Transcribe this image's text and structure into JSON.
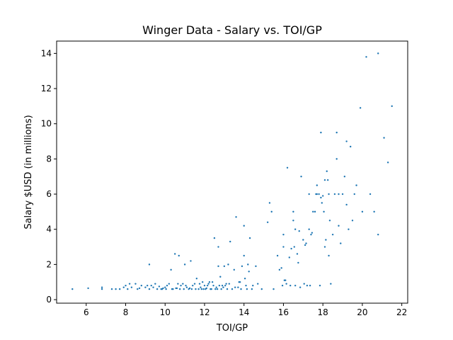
{
  "chart_data": {
    "type": "scatter",
    "title": "Winger Data - Salary vs. TOI/GP",
    "xlabel": "TOI/GP",
    "ylabel": "Salary $USD (in millions)",
    "xlim": [
      4.5,
      22.3
    ],
    "ylim": [
      -0.2,
      14.7
    ],
    "xticks": [
      6,
      8,
      10,
      12,
      14,
      16,
      18,
      20,
      22
    ],
    "yticks": [
      0,
      2,
      4,
      6,
      8,
      10,
      12,
      14
    ],
    "grid": false,
    "legend": "none",
    "marker_color": "#1f77b4",
    "points": [
      [
        5.3,
        0.6
      ],
      [
        6.1,
        0.65
      ],
      [
        6.8,
        0.6
      ],
      [
        6.8,
        0.7
      ],
      [
        7.3,
        0.6
      ],
      [
        7.5,
        0.6
      ],
      [
        7.7,
        0.6
      ],
      [
        7.9,
        0.7
      ],
      [
        8.0,
        0.8
      ],
      [
        8.2,
        0.9
      ],
      [
        8.3,
        0.7
      ],
      [
        8.5,
        0.9
      ],
      [
        8.6,
        0.6
      ],
      [
        8.8,
        0.8
      ],
      [
        9.0,
        0.7
      ],
      [
        9.2,
        2.0
      ],
      [
        9.2,
        0.6
      ],
      [
        9.3,
        0.8
      ],
      [
        9.4,
        0.7
      ],
      [
        9.5,
        0.9
      ],
      [
        9.6,
        0.6
      ],
      [
        9.7,
        0.75
      ],
      [
        9.8,
        0.6
      ],
      [
        9.9,
        0.65
      ],
      [
        10.0,
        0.7
      ],
      [
        10.1,
        0.8
      ],
      [
        10.2,
        0.9
      ],
      [
        10.3,
        1.7
      ],
      [
        10.4,
        0.6
      ],
      [
        10.5,
        2.6
      ],
      [
        10.6,
        0.65
      ],
      [
        10.7,
        2.5
      ],
      [
        10.8,
        0.8
      ],
      [
        10.9,
        0.9
      ],
      [
        11.0,
        2.0
      ],
      [
        11.1,
        0.7
      ],
      [
        11.2,
        0.6
      ],
      [
        11.3,
        2.2
      ],
      [
        11.4,
        0.8
      ],
      [
        11.5,
        0.9
      ],
      [
        11.6,
        1.2
      ],
      [
        11.7,
        0.6
      ],
      [
        11.8,
        0.7
      ],
      [
        11.9,
        1.0
      ],
      [
        12.0,
        0.8
      ],
      [
        12.1,
        0.65
      ],
      [
        12.2,
        0.9
      ],
      [
        12.3,
        0.6
      ],
      [
        12.4,
        1.0
      ],
      [
        12.5,
        3.5
      ],
      [
        12.6,
        0.7
      ],
      [
        12.7,
        1.9
      ],
      [
        12.7,
        3.0
      ],
      [
        12.8,
        1.3
      ],
      [
        12.9,
        0.8
      ],
      [
        13.0,
        1.9
      ],
      [
        13.1,
        0.9
      ],
      [
        13.2,
        2.0
      ],
      [
        13.3,
        3.3
      ],
      [
        13.4,
        0.6
      ],
      [
        13.5,
        1.7
      ],
      [
        13.6,
        4.7
      ],
      [
        13.7,
        0.7
      ],
      [
        13.8,
        1.0
      ],
      [
        13.9,
        1.9
      ],
      [
        14.0,
        2.5
      ],
      [
        14.0,
        4.2
      ],
      [
        14.1,
        0.8
      ],
      [
        14.2,
        2.0
      ],
      [
        14.3,
        3.5
      ],
      [
        14.4,
        0.6
      ],
      [
        14.6,
        1.9
      ],
      [
        14.7,
        0.9
      ],
      [
        14.9,
        0.6
      ],
      [
        15.2,
        4.4
      ],
      [
        15.3,
        5.5
      ],
      [
        15.4,
        5.0
      ],
      [
        15.5,
        0.6
      ],
      [
        15.7,
        2.5
      ],
      [
        15.8,
        1.7
      ],
      [
        15.9,
        1.8
      ],
      [
        16.0,
        3.0
      ],
      [
        16.0,
        3.7
      ],
      [
        16.1,
        1.1
      ],
      [
        16.2,
        7.5
      ],
      [
        16.3,
        2.4
      ],
      [
        16.4,
        2.9
      ],
      [
        16.5,
        5.0
      ],
      [
        16.5,
        4.5
      ],
      [
        16.6,
        4.0
      ],
      [
        16.7,
        2.6
      ],
      [
        16.8,
        3.9
      ],
      [
        16.9,
        7.0
      ],
      [
        17.0,
        3.4
      ],
      [
        17.1,
        3.1
      ],
      [
        17.2,
        0.8
      ],
      [
        17.3,
        6.0
      ],
      [
        17.3,
        4.0
      ],
      [
        17.4,
        3.7
      ],
      [
        17.5,
        5.0
      ],
      [
        17.6,
        5.0
      ],
      [
        17.7,
        6.0
      ],
      [
        17.7,
        6.5
      ],
      [
        17.8,
        6.0
      ],
      [
        17.9,
        9.5
      ],
      [
        17.9,
        5.8
      ],
      [
        18.0,
        5.9
      ],
      [
        18.1,
        3.0
      ],
      [
        18.1,
        6.8
      ],
      [
        18.2,
        7.3
      ],
      [
        18.3,
        2.5
      ],
      [
        18.3,
        6.0
      ],
      [
        18.4,
        0.9
      ],
      [
        18.5,
        3.7
      ],
      [
        18.6,
        6.0
      ],
      [
        18.7,
        9.5
      ],
      [
        18.7,
        8.0
      ],
      [
        18.8,
        6.0
      ],
      [
        18.8,
        4.2
      ],
      [
        18.9,
        3.2
      ],
      [
        19.0,
        6.0
      ],
      [
        19.1,
        7.0
      ],
      [
        19.2,
        9.0
      ],
      [
        19.2,
        5.4
      ],
      [
        19.3,
        4.0
      ],
      [
        19.4,
        8.7
      ],
      [
        19.5,
        4.5
      ],
      [
        19.6,
        6.0
      ],
      [
        19.7,
        6.5
      ],
      [
        19.9,
        10.9
      ],
      [
        20.0,
        5.0
      ],
      [
        20.2,
        13.8
      ],
      [
        20.4,
        6.0
      ],
      [
        20.6,
        5.0
      ],
      [
        20.8,
        14.0
      ],
      [
        20.8,
        3.7
      ],
      [
        21.1,
        9.2
      ],
      [
        21.3,
        7.8
      ],
      [
        21.5,
        11.0
      ],
      [
        8.1,
        0.6
      ],
      [
        8.7,
        0.65
      ],
      [
        9.1,
        0.8
      ],
      [
        9.85,
        0.6
      ],
      [
        10.05,
        0.6
      ],
      [
        10.35,
        0.6
      ],
      [
        10.55,
        0.65
      ],
      [
        10.65,
        0.9
      ],
      [
        10.75,
        0.6
      ],
      [
        10.95,
        0.6
      ],
      [
        11.05,
        0.8
      ],
      [
        11.25,
        0.65
      ],
      [
        11.35,
        0.6
      ],
      [
        11.55,
        0.6
      ],
      [
        11.75,
        0.9
      ],
      [
        11.85,
        0.6
      ],
      [
        11.95,
        0.6
      ],
      [
        12.05,
        0.6
      ],
      [
        12.15,
        0.8
      ],
      [
        12.25,
        1.0
      ],
      [
        12.35,
        0.6
      ],
      [
        12.45,
        0.8
      ],
      [
        12.55,
        0.6
      ],
      [
        12.65,
        0.6
      ],
      [
        12.75,
        0.8
      ],
      [
        12.85,
        0.6
      ],
      [
        12.95,
        0.7
      ],
      [
        13.05,
        0.8
      ],
      [
        13.15,
        0.6
      ],
      [
        13.25,
        0.9
      ],
      [
        13.55,
        0.7
      ],
      [
        13.75,
        1.0
      ],
      [
        13.85,
        0.6
      ],
      [
        14.05,
        1.2
      ],
      [
        14.15,
        0.6
      ],
      [
        14.25,
        1.6
      ],
      [
        14.45,
        0.8
      ],
      [
        15.95,
        0.8
      ],
      [
        16.05,
        1.1
      ],
      [
        16.15,
        0.9
      ],
      [
        16.35,
        0.8
      ],
      [
        16.6,
        0.8
      ],
      [
        16.85,
        0.7
      ],
      [
        17.05,
        0.9
      ],
      [
        17.35,
        0.8
      ],
      [
        17.85,
        0.8
      ],
      [
        16.55,
        3.0
      ],
      [
        16.75,
        2.1
      ],
      [
        17.15,
        3.2
      ],
      [
        17.45,
        3.8
      ],
      [
        18.25,
        6.8
      ],
      [
        18.35,
        4.5
      ],
      [
        17.65,
        6.0
      ],
      [
        17.95,
        5.5
      ],
      [
        18.05,
        5.0
      ],
      [
        18.15,
        3.4
      ]
    ]
  }
}
